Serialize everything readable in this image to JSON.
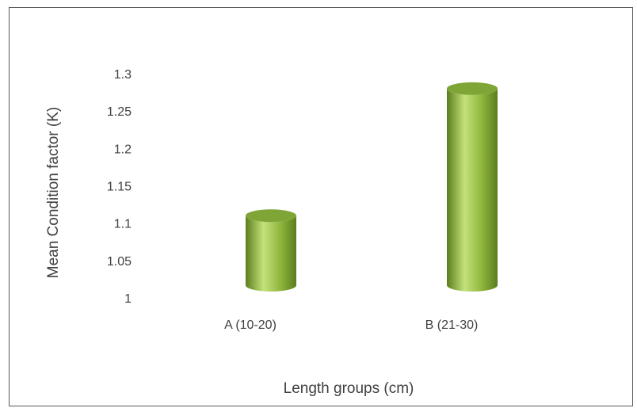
{
  "chart_data": {
    "type": "bar",
    "bar_shape": "cylinder",
    "categories": [
      "A (10-20)",
      "B (21-30)"
    ],
    "values": [
      1.11,
      1.28
    ],
    "yticks": [
      "1.3",
      "1.25",
      "1.2",
      "1.15",
      "1.1",
      "1.05",
      "1"
    ],
    "ylim": [
      1,
      1.3
    ],
    "xlabel": "Length groups (cm)",
    "ylabel": "Mean Condition factor (K)",
    "grid": false,
    "legend": "none",
    "colors": {
      "bar_fill": "#8db43c",
      "bar_highlight": "#c4e27a",
      "bar_shadow": "#5c7d1e",
      "bar_top": "#7ea536",
      "text": "#404040",
      "frame": "#595959"
    }
  }
}
